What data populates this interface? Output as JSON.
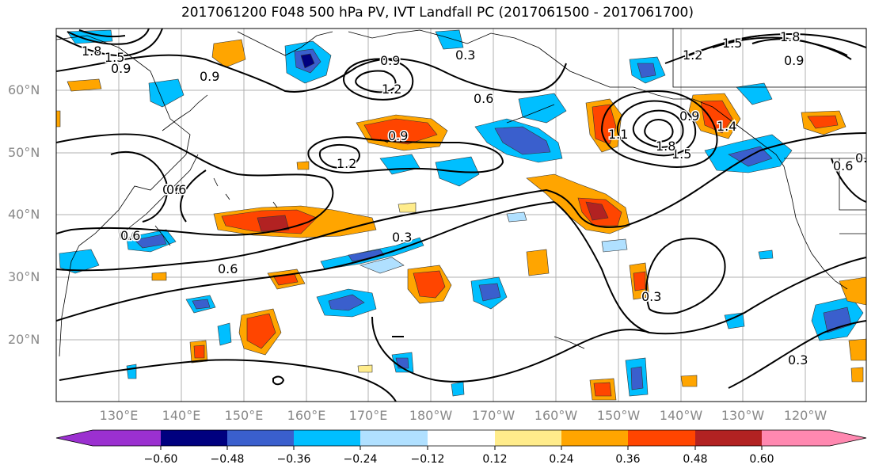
{
  "title": "2017061200 F048 500 hPa PV, IVT Landfall PC (2017061500 - 2017061700)",
  "lat_labels": [
    "60°N",
    "50°N",
    "40°N",
    "30°N",
    "20°N"
  ],
  "lon_labels": [
    "130°E",
    "140°E",
    "150°E",
    "160°E",
    "170°E",
    "180°W",
    "170°W",
    "160°W",
    "150°W",
    "140°W",
    "130°W",
    "120°W"
  ],
  "colorbar": {
    "tick_labels": [
      "−0.60",
      "−0.48",
      "−0.36",
      "−0.24",
      "−0.12",
      "0.12",
      "0.24",
      "0.36",
      "0.48",
      "0.60"
    ],
    "colors": [
      "#9b30d0",
      "#00007f",
      "#3a5fcd",
      "#00bfff",
      "#b0e0ff",
      "#ffffff",
      "#ffec8b",
      "#ffa500",
      "#ff4500",
      "#b22222",
      "#ff88b0"
    ]
  },
  "contour_labels": [
    "1.8",
    "1.5",
    "0.9",
    "0.9",
    "0.9",
    "1.2",
    "0.3",
    "0.6",
    "0.9",
    "1.2",
    "0.6",
    "1.1",
    "1.5",
    "1.8",
    "0.9",
    "1.2",
    "1.5",
    "1.8",
    "0.9",
    "0.6",
    "0.6",
    "0.6",
    "0.6",
    "0.3",
    "0.3",
    "0.3",
    "0.6",
    "0.9",
    "1.4"
  ]
}
